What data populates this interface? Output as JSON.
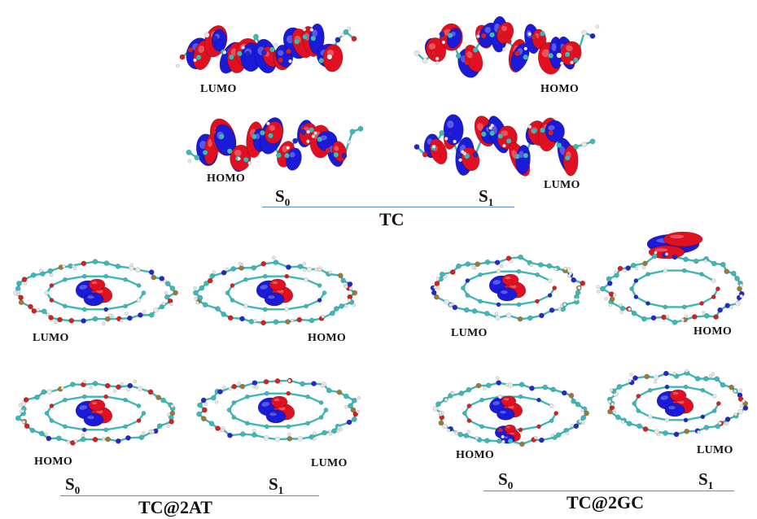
{
  "colors": {
    "orbital_positive": "#e01020",
    "orbital_negative": "#1a1ad8",
    "atom_carbon": "#3fb7b7",
    "atom_oxygen": "#d42020",
    "atom_nitrogen": "#2727c8",
    "atom_hydrogen": "#e8e8e8",
    "atom_phosphorus": "#9a7a3a",
    "bond": "#3fb7b7",
    "axis_line": "#5b8fd0"
  },
  "tc": {
    "title": "TC",
    "s0_label": "S",
    "s0_sub": "0",
    "s1_label": "S",
    "s1_sub": "1",
    "top_left_label": "LUMO",
    "top_right_label": "HOMO",
    "bottom_left_label": "HOMO",
    "bottom_right_label": "LUMO"
  },
  "tc2at": {
    "title": "TC@2AT",
    "s0_label": "S",
    "s0_sub": "0",
    "s1_label": "S",
    "s1_sub": "1",
    "top_left_label": "LUMO",
    "top_right_label": "HOMO",
    "bottom_left_label": "HOMO",
    "bottom_right_label": "LUMO"
  },
  "tc2gc": {
    "title": "TC@2GC",
    "s0_label": "S",
    "s0_sub": "0",
    "s1_label": "S",
    "s1_sub": "1",
    "top_left_label": "LUMO",
    "top_right_label": "HOMO",
    "bottom_left_label": "HOMO",
    "bottom_right_label": "LUMO"
  }
}
